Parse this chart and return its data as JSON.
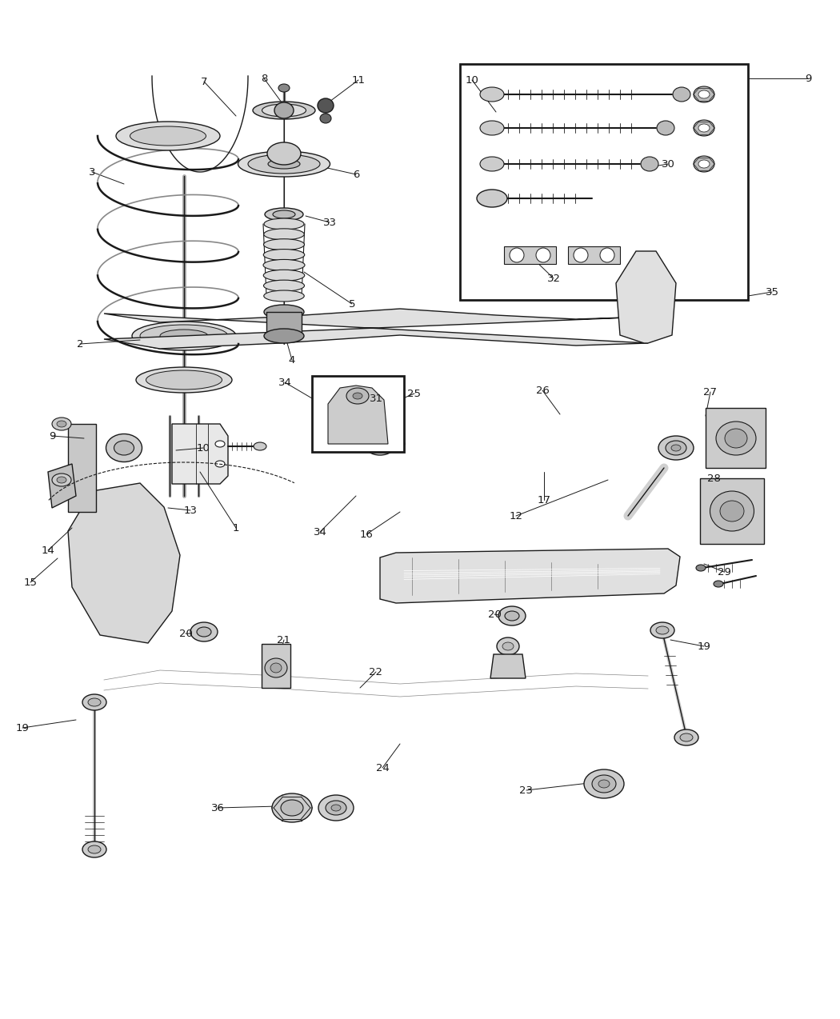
{
  "bg": "#ffffff",
  "lc": "#1a1a1a",
  "fig_w": 10.5,
  "fig_h": 12.74,
  "dpi": 100,
  "lw": 1.0,
  "fs": 9.5
}
